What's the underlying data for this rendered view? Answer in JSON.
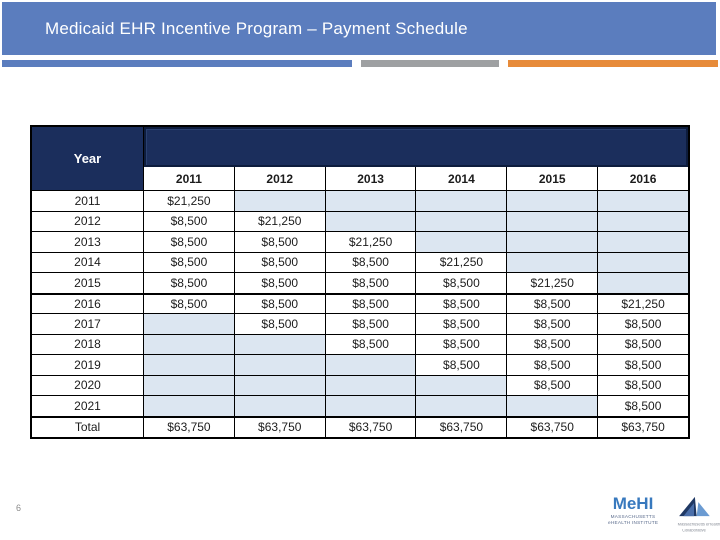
{
  "slide": {
    "title": "Medicaid EHR Incentive Program – Payment Schedule",
    "page_number": "6"
  },
  "accent_bar": {
    "segments": [
      {
        "name": "blue",
        "color": "#5b7dbe"
      },
      {
        "name": "gray",
        "color": "#9ea0a2"
      },
      {
        "name": "orange",
        "color": "#e78b3a"
      }
    ]
  },
  "table": {
    "corner_header": "Year",
    "banner_label": "",
    "column_headers": [
      "2011",
      "2012",
      "2013",
      "2014",
      "2015",
      "2016"
    ],
    "rows": [
      {
        "year": "2011",
        "values": [
          "$21,250",
          "",
          "",
          "",
          "",
          ""
        ]
      },
      {
        "year": "2012",
        "values": [
          "$8,500",
          "$21,250",
          "",
          "",
          "",
          ""
        ]
      },
      {
        "year": "2013",
        "values": [
          "$8,500",
          "$8,500",
          "$21,250",
          "",
          "",
          ""
        ]
      },
      {
        "year": "2014",
        "values": [
          "$8,500",
          "$8,500",
          "$8,500",
          "$21,250",
          "",
          ""
        ]
      },
      {
        "year": "2015",
        "values": [
          "$8,500",
          "$8,500",
          "$8,500",
          "$8,500",
          "$21,250",
          ""
        ]
      },
      {
        "year": "2016",
        "values": [
          "$8,500",
          "$8,500",
          "$8,500",
          "$8,500",
          "$8,500",
          "$21,250"
        ]
      },
      {
        "year": "2017",
        "values": [
          "",
          "$8,500",
          "$8,500",
          "$8,500",
          "$8,500",
          "$8,500"
        ]
      },
      {
        "year": "2018",
        "values": [
          "",
          "",
          "$8,500",
          "$8,500",
          "$8,500",
          "$8,500"
        ]
      },
      {
        "year": "2019",
        "values": [
          "",
          "",
          "",
          "$8,500",
          "$8,500",
          "$8,500"
        ]
      },
      {
        "year": "2020",
        "values": [
          "",
          "",
          "",
          "",
          "$8,500",
          "$8,500"
        ]
      },
      {
        "year": "2021",
        "values": [
          "",
          "",
          "",
          "",
          "",
          "$8,500"
        ]
      },
      {
        "year": "Total",
        "values": [
          "$63,750",
          "$63,750",
          "$63,750",
          "$63,750",
          "$63,750",
          "$63,750"
        ]
      }
    ],
    "thick_border_above_rows": [
      "2016",
      "Total"
    ],
    "colors": {
      "header_navy": "#1b2e5c",
      "empty_cell_shade": "#dce6f1",
      "grid_border": "#000000"
    }
  },
  "footer": {
    "mehi_logo": {
      "wordmark": "MeHI",
      "line1": "MASSACHUSETTS",
      "line2": "eHEALTH INSTITUTE",
      "brand_color": "#3879be"
    },
    "collab_logo": {
      "icon": "sail-logo",
      "line1": "Massachusetts eHealth",
      "line2": "Collaborative",
      "dark_color": "#1f3864",
      "light_color": "#6b9bd2"
    }
  }
}
